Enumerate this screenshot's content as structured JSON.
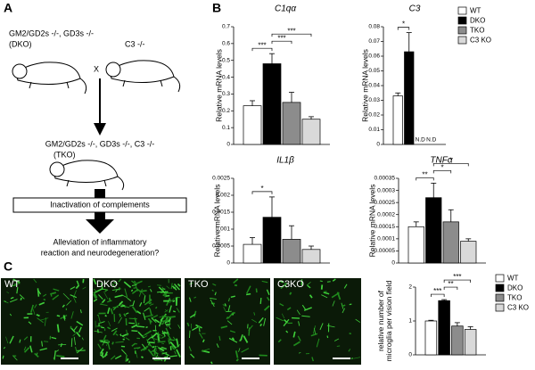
{
  "panel_labels": {
    "a": "A",
    "b": "B",
    "c": "C"
  },
  "diagram": {
    "dko_genotype": "GM2/GD2s -/-, GD3s -/-",
    "dko_name": "(DKO)",
    "c3_genotype": "C3 -/-",
    "cross": "X",
    "tko_genotype": "GM2/GD2s -/-, GD3s -/-, C3 -/-",
    "tko_name": "(TKO)",
    "step": "Inactivation of complements",
    "outcome": [
      "Alleviation of inflammatory",
      "reaction and neurodegeneration?"
    ]
  },
  "micrographs": [
    "WT",
    "DKO",
    "TKO",
    "C3KO"
  ],
  "chart_data": [
    {
      "type": "bar",
      "title": "C1qα",
      "ylabel": [
        "Relative mRNA levels"
      ],
      "ylim": [
        0,
        0.7
      ],
      "yticks": [
        0,
        0.1,
        0.2,
        0.3,
        0.4,
        0.5,
        0.6,
        0.7
      ],
      "values": [
        0.23,
        0.48,
        0.25,
        0.15
      ],
      "errors": [
        0.03,
        0.06,
        0.06,
        0.015
      ],
      "colors": [
        "#ffffff",
        "#000000",
        "#8c8c8c",
        "#d9d9d9"
      ],
      "significance": [
        {
          "from": 0,
          "to": 1,
          "label": "***"
        },
        {
          "from": 1,
          "to": 2,
          "label": "***"
        },
        {
          "from": 1,
          "to": 3,
          "label": "***"
        }
      ]
    },
    {
      "type": "bar",
      "title": "C3",
      "ylabel": [
        "Relative mRNA levels"
      ],
      "ylim": [
        0,
        0.08
      ],
      "yticks": [
        0,
        0.01,
        0.02,
        0.03,
        0.04,
        0.05,
        0.06,
        0.07,
        0.08
      ],
      "values": [
        0.033,
        0.063,
        null,
        null
      ],
      "errors": [
        0.002,
        0.013,
        null,
        null
      ],
      "value_labels": [
        null,
        null,
        "N.D",
        "N.D"
      ],
      "colors": [
        "#ffffff",
        "#000000",
        "#8c8c8c",
        "#d9d9d9"
      ],
      "legend": [
        "WT",
        "DKO",
        "TKO",
        "C3 KO"
      ],
      "significance": [
        {
          "from": 0,
          "to": 1,
          "label": "*"
        }
      ]
    },
    {
      "type": "bar",
      "title": "IL1β",
      "ylabel": [
        "Relative mRNA levels"
      ],
      "ylim": [
        0,
        0.0025
      ],
      "yticks": [
        0,
        0.0005,
        0.001,
        0.0015,
        0.002,
        0.0025
      ],
      "values": [
        0.00055,
        0.00135,
        0.0007,
        0.0004
      ],
      "errors": [
        0.0002,
        0.0006,
        0.0004,
        0.0001
      ],
      "colors": [
        "#ffffff",
        "#000000",
        "#8c8c8c",
        "#d9d9d9"
      ],
      "significance": [
        {
          "from": 0,
          "to": 1,
          "label": "*"
        }
      ]
    },
    {
      "type": "bar",
      "title": "TNFα",
      "ylabel": [
        "Relative mRNA levels"
      ],
      "ylim": [
        0,
        0.00035
      ],
      "yticks": [
        0,
        5e-05,
        0.0001,
        0.00015,
        0.0002,
        0.00025,
        0.0003,
        0.00035
      ],
      "values": [
        0.00015,
        0.00027,
        0.00017,
        9e-05
      ],
      "errors": [
        2e-05,
        6e-05,
        5e-05,
        1e-05
      ],
      "colors": [
        "#ffffff",
        "#000000",
        "#8c8c8c",
        "#d9d9d9"
      ],
      "significance": [
        {
          "from": 0,
          "to": 1,
          "label": "**"
        },
        {
          "from": 1,
          "to": 2,
          "label": "*"
        },
        {
          "from": 1,
          "to": 3,
          "label": "*"
        }
      ]
    },
    {
      "type": "bar",
      "ylabel": [
        "relative number of",
        "microglia per vision field"
      ],
      "ylim": [
        0,
        2
      ],
      "yticks": [
        0,
        1,
        2
      ],
      "values": [
        1.0,
        1.6,
        0.85,
        0.75
      ],
      "errors": [
        0.02,
        0.03,
        0.1,
        0.08
      ],
      "colors": [
        "#ffffff",
        "#000000",
        "#8c8c8c",
        "#d9d9d9"
      ],
      "legend": [
        "WT",
        "DKO",
        "TKO",
        "C3 KO"
      ],
      "significance": [
        {
          "from": 0,
          "to": 1,
          "label": "***"
        },
        {
          "from": 1,
          "to": 2,
          "label": "**"
        },
        {
          "from": 1,
          "to": 3,
          "label": "***"
        }
      ]
    }
  ]
}
